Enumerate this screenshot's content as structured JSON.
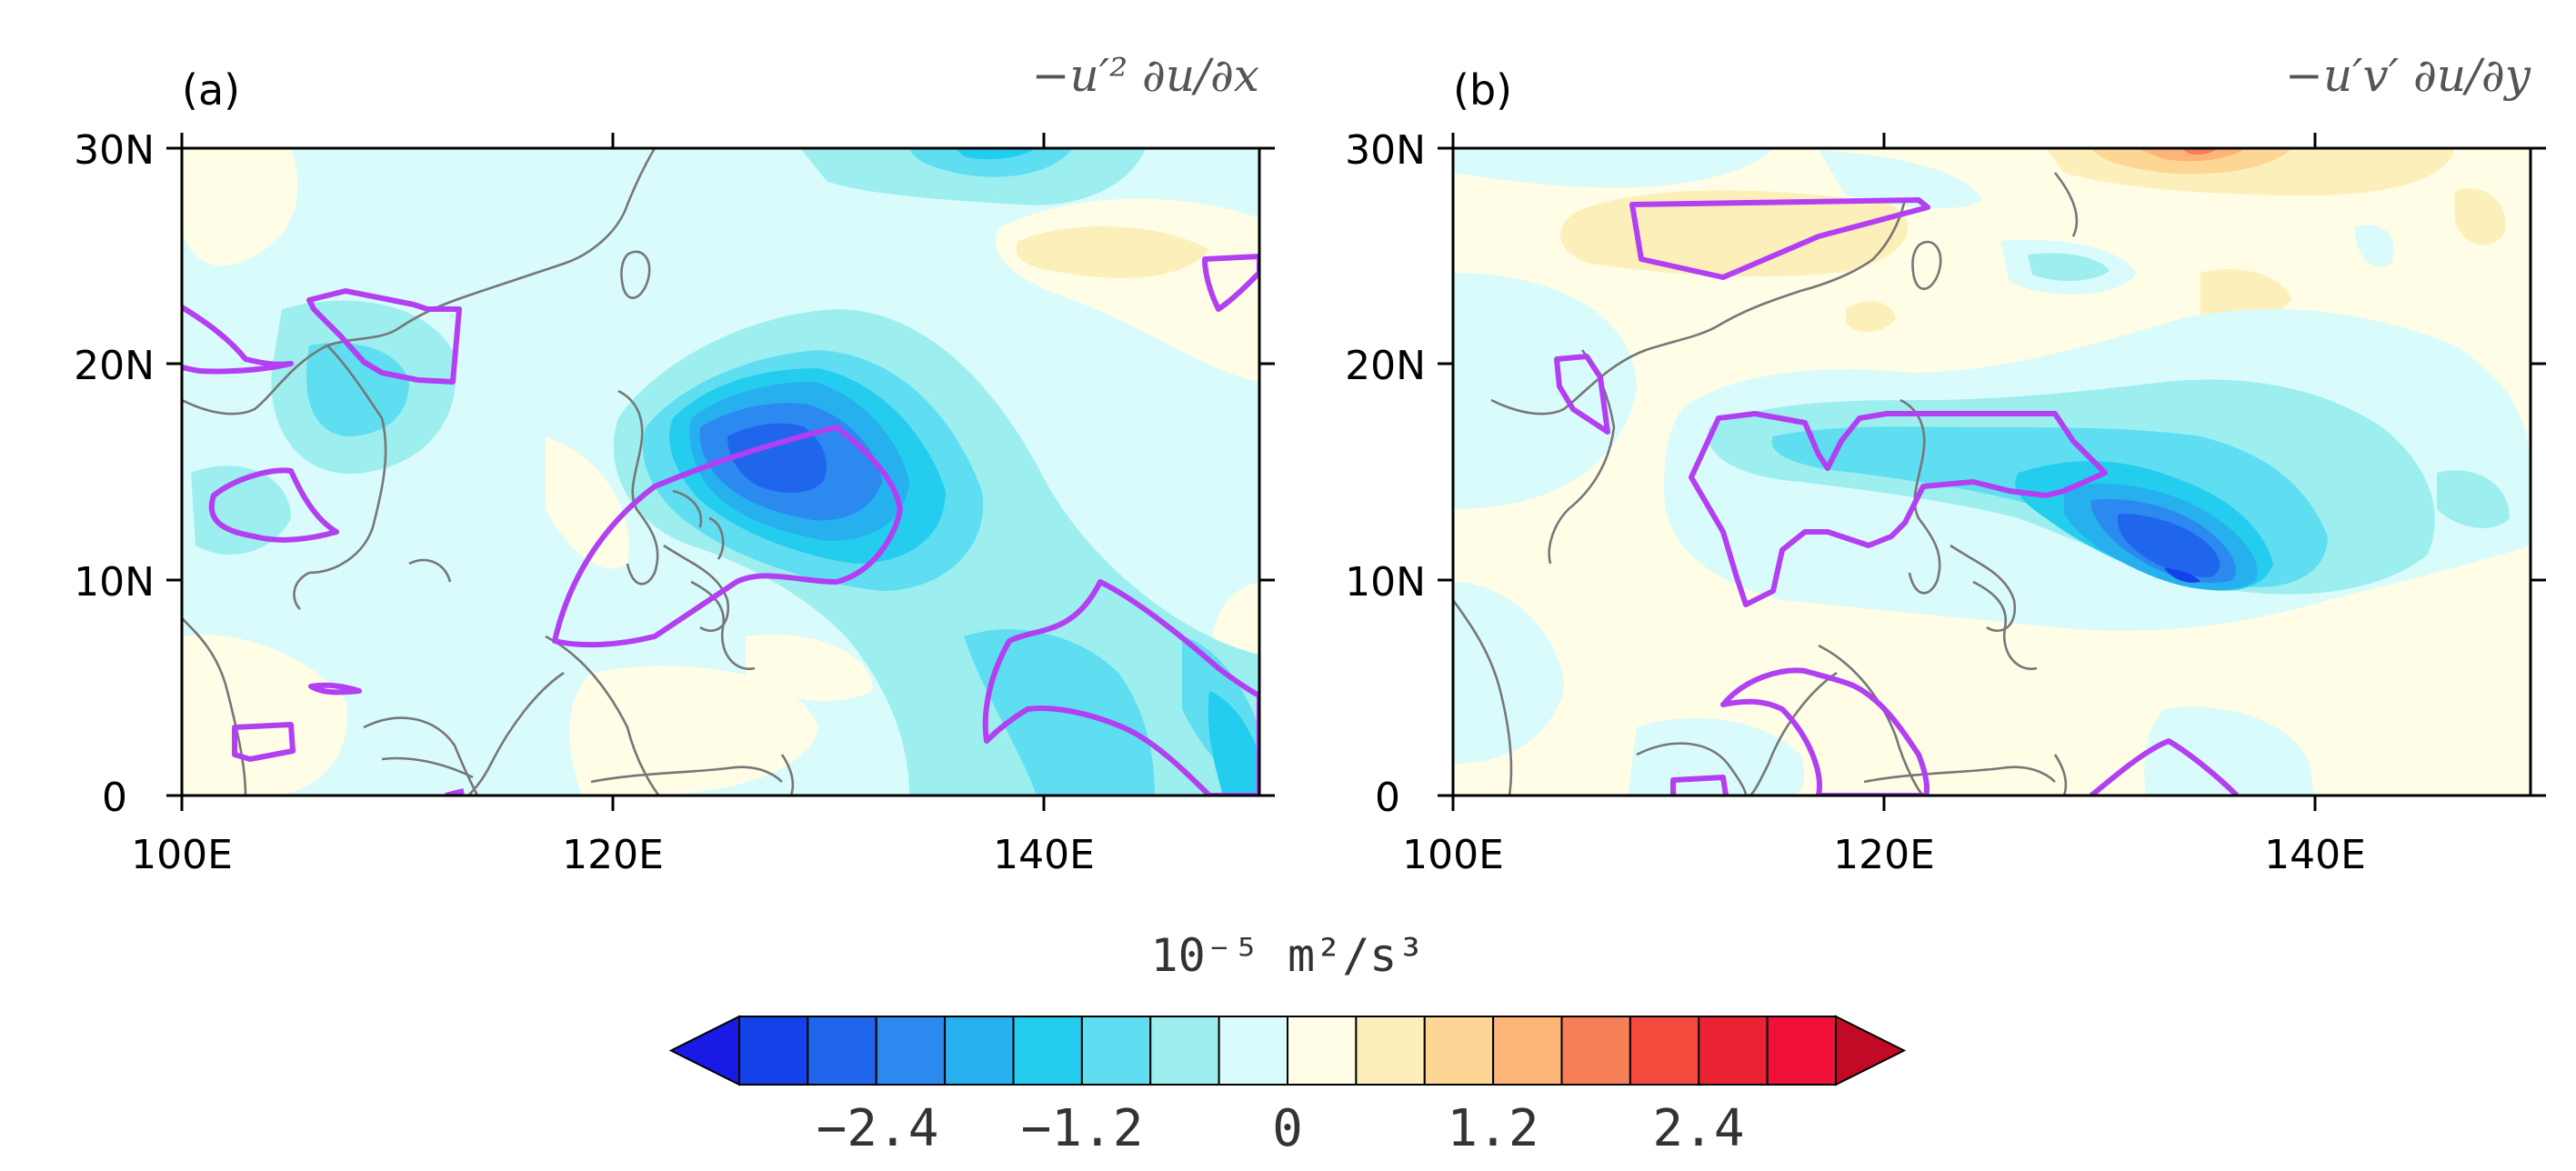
{
  "figure": {
    "units_label": "10⁻⁵ m²/s³",
    "axes": {
      "x_ticks": [
        "100E",
        "120E",
        "140E"
      ],
      "y_ticks": [
        "30N",
        "20N",
        "10N",
        "0"
      ],
      "lon_range": [
        100,
        150
      ],
      "lat_range": [
        0,
        30
      ]
    },
    "panels": [
      {
        "label": "(a)",
        "title": "−u′² ∂u/∂x"
      },
      {
        "label": "(b)",
        "title": "−u′v′ ∂u/∂y"
      }
    ],
    "colorbar": {
      "tick_labels": [
        "−2.4",
        "−1.2",
        "0",
        "1.2",
        "2.4"
      ],
      "levels": [
        -3.0,
        -2.8,
        -2.4,
        -2.0,
        -1.6,
        -1.2,
        -0.8,
        -0.4,
        0,
        0.4,
        0.8,
        1.2,
        1.6,
        2.0,
        2.4,
        2.8,
        3.0
      ],
      "colors": [
        "#1a1ae6",
        "#1442e8",
        "#1f66ec",
        "#2b89f0",
        "#27b0ee",
        "#24cdee",
        "#5fdef2",
        "#9defef",
        "#d9fbfb",
        "#fffde6",
        "#fdefb9",
        "#fdd595",
        "#fdb477",
        "#f67f57",
        "#f34a3e",
        "#eb2233",
        "#f0103a",
        "#c00a26"
      ]
    }
  }
}
